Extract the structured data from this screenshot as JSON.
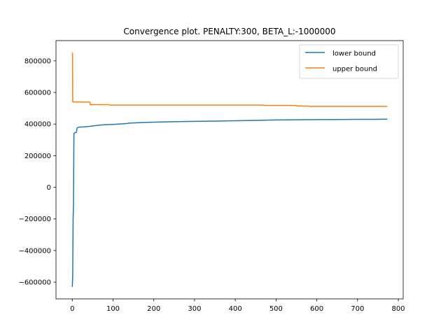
{
  "chart_data": {
    "type": "line",
    "title": "Convergence plot. PENALTY:300, BETA_L:-1000000",
    "xlabel": "",
    "ylabel": "",
    "xlim": [
      -40,
      812
    ],
    "ylim": [
      -706000,
      928000
    ],
    "x_ticks": [
      0,
      100,
      200,
      300,
      400,
      500,
      600,
      700,
      800
    ],
    "x_tick_labels": [
      "0",
      "100",
      "200",
      "300",
      "400",
      "500",
      "600",
      "700",
      "800"
    ],
    "y_ticks": [
      -600000,
      -400000,
      -200000,
      0,
      200000,
      400000,
      600000,
      800000
    ],
    "y_tick_labels": [
      "−600000",
      "−400000",
      "−200000",
      "0",
      "200000",
      "400000",
      "600000",
      "800000"
    ],
    "legend_position": "top-right",
    "grid": false,
    "series": [
      {
        "name": "lower bound",
        "color": "#1f77b4",
        "points": [
          [
            0,
            -630000
          ],
          [
            1,
            -560000
          ],
          [
            2,
            -200000
          ],
          [
            3,
            -100000
          ],
          [
            4,
            340000
          ],
          [
            6,
            345000
          ],
          [
            10,
            348000
          ],
          [
            12,
            376000
          ],
          [
            15,
            380000
          ],
          [
            20,
            381000
          ],
          [
            30,
            382000
          ],
          [
            40,
            385000
          ],
          [
            50,
            388000
          ],
          [
            60,
            391000
          ],
          [
            70,
            394000
          ],
          [
            80,
            396000
          ],
          [
            100,
            398000
          ],
          [
            120,
            401000
          ],
          [
            135,
            404000
          ],
          [
            140,
            406000
          ],
          [
            160,
            408000
          ],
          [
            200,
            412000
          ],
          [
            250,
            415000
          ],
          [
            300,
            417000
          ],
          [
            350,
            419000
          ],
          [
            400,
            421000
          ],
          [
            450,
            423000
          ],
          [
            500,
            426000
          ],
          [
            550,
            427000
          ],
          [
            600,
            428000
          ],
          [
            650,
            429000
          ],
          [
            700,
            430000
          ],
          [
            740,
            430000
          ],
          [
            773,
            431000
          ]
        ]
      },
      {
        "name": "upper bound",
        "color": "#ff7f0e",
        "points": [
          [
            0,
            850000
          ],
          [
            0.5,
            850000
          ],
          [
            1,
            540000
          ],
          [
            25,
            540000
          ],
          [
            26,
            539000
          ],
          [
            43,
            539000
          ],
          [
            44,
            523000
          ],
          [
            90,
            523000
          ],
          [
            91,
            520000
          ],
          [
            470,
            520000
          ],
          [
            471,
            518000
          ],
          [
            550,
            518000
          ],
          [
            551,
            514000
          ],
          [
            580,
            514000
          ],
          [
            581,
            512000
          ],
          [
            773,
            512000
          ]
        ]
      }
    ]
  }
}
